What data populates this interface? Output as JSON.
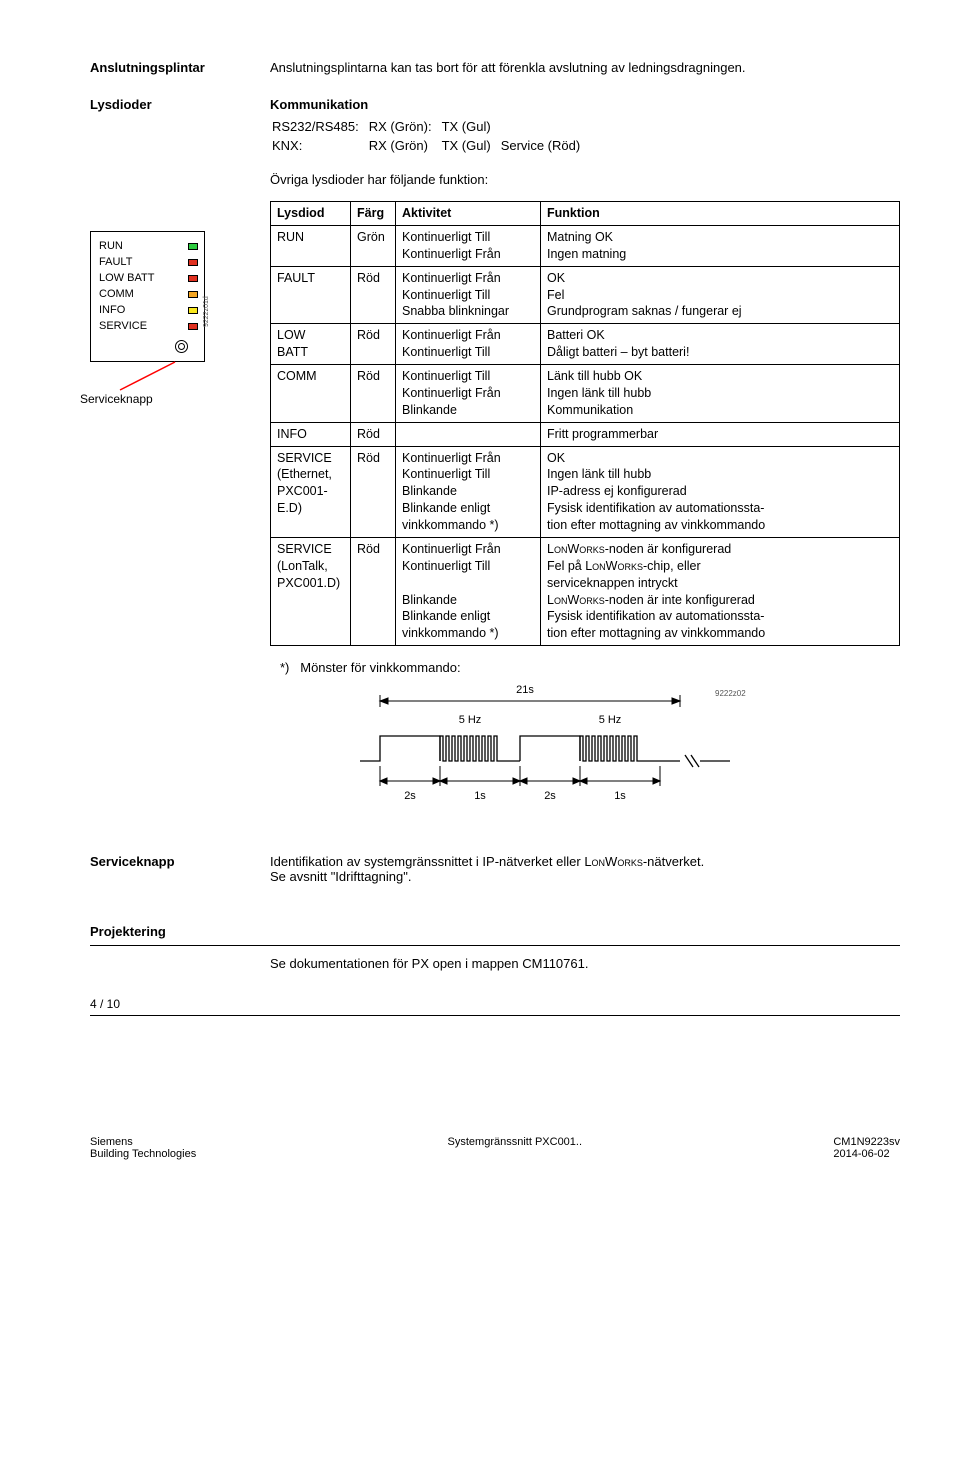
{
  "headings": {
    "terminals": "Anslutningsplintar",
    "terminals_text": "Anslutningsplintarna kan tas bort för att förenkla avslutning av ledningsdragningen.",
    "leds": "Lysdioder",
    "communication": "Kommunikation",
    "other_leds_intro": "Övriga lysdioder har följande funktion:",
    "footnote_prefix": "*)",
    "footnote_text": "Mönster för vinkkommando:",
    "serviceknapp": "Serviceknapp",
    "serviceknapp_text1": "Identifikation av systemgränssnittet i IP-nätverket eller ",
    "serviceknapp_lon": "LonWorks",
    "serviceknapp_text2": "-nätverket.",
    "serviceknapp_text3": "Se avsnitt \"Idrifttagning\".",
    "projektering": "Projektering",
    "projektering_text": "Se dokumentationen för PX open i mappen CM110761."
  },
  "comm": {
    "r1c1": "RS232/RS485:",
    "r1c2": "RX (Grön):",
    "r1c3": "TX (Gul)",
    "r2c1": "KNX:",
    "r2c2": "RX (Grön)",
    "r2c3": "TX (Gul)",
    "r2c4": "Service (Röd)"
  },
  "led_panel": {
    "items": [
      "RUN",
      "FAULT",
      "LOW BATT",
      "COMM",
      "INFO",
      "SERVICE"
    ],
    "service_label": "Serviceknapp",
    "code": "9222z01d"
  },
  "table": {
    "headers": {
      "c1": "Lysdiod",
      "c2": "Färg",
      "c3": "Aktivitet",
      "c4": "Funktion"
    },
    "rows": [
      {
        "c1": "RUN",
        "c2": "Grön",
        "c3": "Kontinuerligt Till\nKontinuerligt Från",
        "c4": "Matning OK\nIngen matning"
      },
      {
        "c1": "FAULT",
        "c2": "Röd",
        "c3": "Kontinuerligt Från\nKontinuerligt Till\nSnabba blinkningar",
        "c4": "OK\nFel\nGrundprogram saknas / fungerar ej"
      },
      {
        "c1": "LOW\nBATT",
        "c2": "Röd",
        "c3": "Kontinuerligt Från\nKontinuerligt Till",
        "c4": "Batteri OK\nDåligt batteri – byt batteri!"
      },
      {
        "c1": "COMM",
        "c2": "Röd",
        "c3": "Kontinuerligt Till\nKontinuerligt Från\nBlinkande",
        "c4": "Länk till hubb OK\nIngen länk till hubb\nKommunikation"
      },
      {
        "c1": "INFO",
        "c2": "Röd",
        "c3": "",
        "c4": "Fritt programmerbar"
      },
      {
        "c1": "SERVICE\n(Ethernet,\nPXC001-\nE.D)",
        "c2": "Röd",
        "c3": "Kontinuerligt Från\nKontinuerligt Till\nBlinkande\nBlinkande enligt\nvinkkommando *)",
        "c4": "OK\nIngen länk till hubb\nIP-adress ej konfigurerad\nFysisk identifikation av automationssta-\ntion efter mottagning av vinkkommando"
      },
      {
        "c1": "SERVICE\n(LonTalk,\nPXC001.D)",
        "c2": "Röd",
        "c3": "Kontinuerligt Från\nKontinuerligt Till\n\nBlinkande\nBlinkande enligt\nvinkkommando *)",
        "c4_lines": [
          {
            "pre": "",
            "lon": "LonWorks",
            "post": "-noden är konfigurerad"
          },
          {
            "pre": "Fel på ",
            "lon": "LonWorks",
            "post": "-chip, eller"
          },
          {
            "pre": "serviceknappen intryckt",
            "lon": "",
            "post": ""
          },
          {
            "pre": "",
            "lon": "LonWorks",
            "post": "-noden är inte konfigurerad"
          },
          {
            "pre": "Fysisk identifikation av automationssta-",
            "lon": "",
            "post": ""
          },
          {
            "pre": "tion efter mottagning av vinkkommando",
            "lon": "",
            "post": ""
          }
        ]
      }
    ]
  },
  "timing": {
    "total": "21s",
    "hz1": "5 Hz",
    "hz2": "5 Hz",
    "t1": "2s",
    "t2": "1s",
    "t3": "2s",
    "t4": "1s",
    "code": "9222z02",
    "colors": {
      "stroke": "#000000"
    }
  },
  "footer": {
    "page": "4 / 10",
    "left": "Siemens\nBuilding Technologies",
    "mid": "Systemgränssnitt PXC001..",
    "right": "CM1N9223sv\n2014-06-02"
  }
}
